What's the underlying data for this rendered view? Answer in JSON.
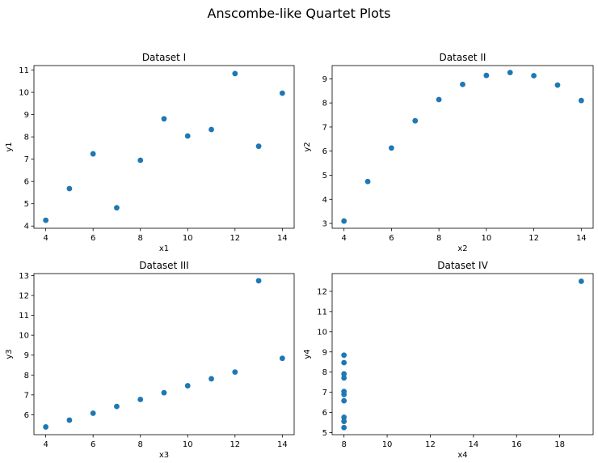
{
  "figure": {
    "title": "Anscombe-like Quartet Plots",
    "point_color": "#1f77b4"
  },
  "chart_data": [
    {
      "type": "scatter",
      "title": "Dataset I",
      "xlabel": "x1",
      "ylabel": "y1",
      "xlim": [
        3.5,
        14.5
      ],
      "ylim": [
        3.9,
        11.2
      ],
      "xticks": [
        4,
        6,
        8,
        10,
        12,
        14
      ],
      "yticks": [
        4,
        5,
        6,
        7,
        8,
        9,
        10,
        11
      ],
      "grid": false,
      "points": [
        {
          "x": 4,
          "y": 4.26
        },
        {
          "x": 5,
          "y": 5.68
        },
        {
          "x": 6,
          "y": 7.24
        },
        {
          "x": 7,
          "y": 4.82
        },
        {
          "x": 8,
          "y": 6.95
        },
        {
          "x": 9,
          "y": 8.81
        },
        {
          "x": 10,
          "y": 8.04
        },
        {
          "x": 11,
          "y": 8.33
        },
        {
          "x": 12,
          "y": 10.84
        },
        {
          "x": 13,
          "y": 7.58
        },
        {
          "x": 14,
          "y": 9.96
        }
      ]
    },
    {
      "type": "scatter",
      "title": "Dataset II",
      "xlabel": "x2",
      "ylabel": "y2",
      "xlim": [
        3.5,
        14.5
      ],
      "ylim": [
        2.8,
        9.55
      ],
      "xticks": [
        4,
        6,
        8,
        10,
        12,
        14
      ],
      "yticks": [
        3,
        4,
        5,
        6,
        7,
        8,
        9
      ],
      "grid": false,
      "points": [
        {
          "x": 4,
          "y": 3.1
        },
        {
          "x": 5,
          "y": 4.74
        },
        {
          "x": 6,
          "y": 6.13
        },
        {
          "x": 7,
          "y": 7.26
        },
        {
          "x": 8,
          "y": 8.14
        },
        {
          "x": 9,
          "y": 8.77
        },
        {
          "x": 10,
          "y": 9.14
        },
        {
          "x": 11,
          "y": 9.26
        },
        {
          "x": 12,
          "y": 9.13
        },
        {
          "x": 13,
          "y": 8.74
        },
        {
          "x": 14,
          "y": 8.1
        }
      ]
    },
    {
      "type": "scatter",
      "title": "Dataset III",
      "xlabel": "x3",
      "ylabel": "y3",
      "xlim": [
        3.5,
        14.5
      ],
      "ylim": [
        5.0,
        13.1
      ],
      "xticks": [
        4,
        6,
        8,
        10,
        12,
        14
      ],
      "yticks": [
        6,
        7,
        8,
        9,
        10,
        11,
        12,
        13
      ],
      "grid": false,
      "points": [
        {
          "x": 4,
          "y": 5.39
        },
        {
          "x": 5,
          "y": 5.73
        },
        {
          "x": 6,
          "y": 6.08
        },
        {
          "x": 7,
          "y": 6.42
        },
        {
          "x": 8,
          "y": 6.77
        },
        {
          "x": 9,
          "y": 7.11
        },
        {
          "x": 10,
          "y": 7.46
        },
        {
          "x": 11,
          "y": 7.81
        },
        {
          "x": 12,
          "y": 8.15
        },
        {
          "x": 13,
          "y": 12.74
        },
        {
          "x": 14,
          "y": 8.84
        }
      ]
    },
    {
      "type": "scatter",
      "title": "Dataset IV",
      "xlabel": "x4",
      "ylabel": "y4",
      "xlim": [
        7.45,
        19.55
      ],
      "ylim": [
        4.9,
        12.88
      ],
      "xticks": [
        8,
        10,
        12,
        14,
        16,
        18
      ],
      "yticks": [
        5,
        6,
        7,
        8,
        9,
        10,
        11,
        12
      ],
      "grid": false,
      "points": [
        {
          "x": 8,
          "y": 6.58
        },
        {
          "x": 8,
          "y": 5.76
        },
        {
          "x": 8,
          "y": 7.71
        },
        {
          "x": 8,
          "y": 8.84
        },
        {
          "x": 8,
          "y": 8.47
        },
        {
          "x": 8,
          "y": 7.04
        },
        {
          "x": 8,
          "y": 5.25
        },
        {
          "x": 19,
          "y": 12.5
        },
        {
          "x": 8,
          "y": 5.56
        },
        {
          "x": 8,
          "y": 7.91
        },
        {
          "x": 8,
          "y": 6.89
        }
      ]
    }
  ]
}
